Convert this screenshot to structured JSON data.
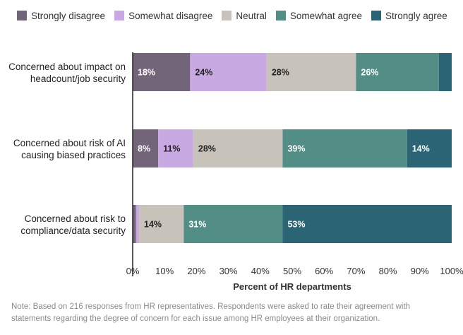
{
  "chart_data": {
    "type": "bar",
    "orientation": "horizontal",
    "stacked": true,
    "categories": [
      [
        "Concerned about impact on",
        "headcount/job security"
      ],
      [
        "Concerned about risk of AI",
        "causing biased practices"
      ],
      [
        "Concerned about risk to",
        "compliance/data security"
      ]
    ],
    "series": [
      {
        "name": "Strongly disagree",
        "color": "#736579",
        "values": [
          18,
          8,
          1
        ],
        "labels": [
          "18%",
          "8%",
          ""
        ]
      },
      {
        "name": "Somewhat disagree",
        "color": "#c9a9e2",
        "values": [
          24,
          11,
          1
        ],
        "labels": [
          "24%",
          "11%",
          ""
        ]
      },
      {
        "name": "Neutral",
        "color": "#c7c3bb",
        "values": [
          28,
          28,
          14
        ],
        "labels": [
          "28%",
          "28%",
          "14%"
        ]
      },
      {
        "name": "Somewhat agree",
        "color": "#528e85",
        "values": [
          26,
          39,
          31
        ],
        "labels": [
          "26%",
          "39%",
          "31%"
        ]
      },
      {
        "name": "Strongly agree",
        "color": "#2b6475",
        "values": [
          4,
          14,
          53
        ],
        "labels": [
          "",
          "14%",
          "53%"
        ]
      }
    ],
    "xlim": [
      0,
      100
    ],
    "xticks": [
      0,
      10,
      20,
      30,
      40,
      50,
      60,
      70,
      80,
      90,
      100
    ],
    "xtick_labels": [
      "0%",
      "10%",
      "20%",
      "30%",
      "40%",
      "50%",
      "60%",
      "70%",
      "80%",
      "90%",
      "100%"
    ],
    "xlabel": "Percent of HR departments",
    "legend_position": "top",
    "grid": false
  },
  "note": [
    "Note: Based on 216 responses from HR representatives. Respondents were asked to rate their agreement with",
    "statements regarding the degree of concern for each issue among HR employees at their organization."
  ]
}
